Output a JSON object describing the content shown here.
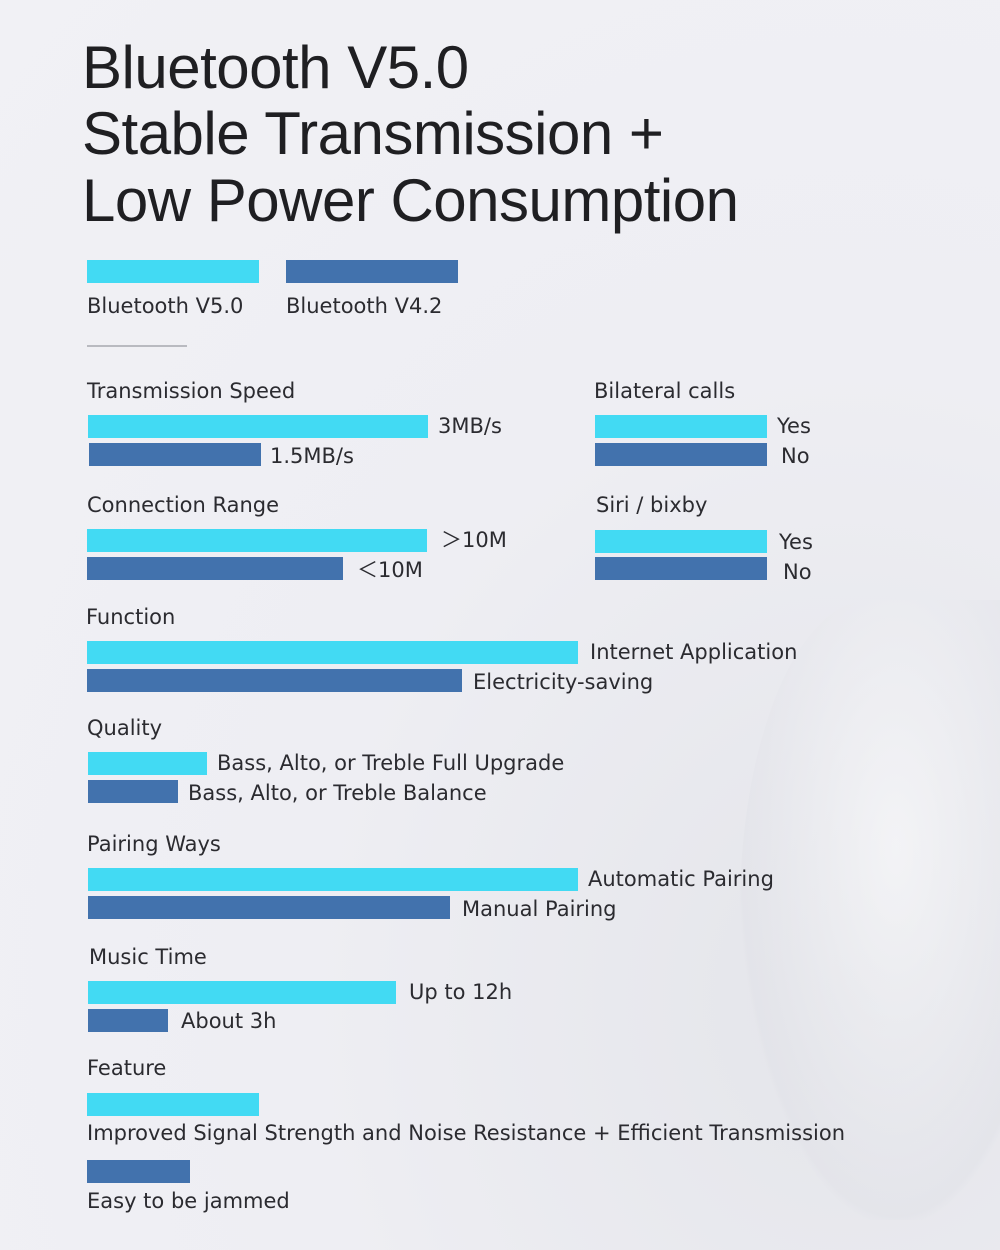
{
  "title_lines": [
    "Bluetooth V5.0",
    "Stable Transmission +",
    "Low Power Consumption"
  ],
  "colors": {
    "v50": "#42daf3",
    "v42": "#4272ad",
    "background": "#eeeef3"
  },
  "legend": [
    {
      "label": "Bluetooth V5.0",
      "color": "#42daf3"
    },
    {
      "label": "Bluetooth V4.2",
      "color": "#4272ad"
    }
  ],
  "sections": [
    {
      "title": "Transmission Speed",
      "v50": "3MB/s",
      "v42": "1.5MB/s"
    },
    {
      "title": "Bilateral calls",
      "v50": "Yes",
      "v42": "No"
    },
    {
      "title": "Connection Range",
      "v50": "＞10M",
      "v42": "＜10M"
    },
    {
      "title": "Siri / bixby",
      "v50": "Yes",
      "v42": "No"
    },
    {
      "title": "Function",
      "v50": "Internet Application",
      "v42": "Electricity-saving"
    },
    {
      "title": "Quality",
      "v50": "Bass, Alto, or Treble Full Upgrade",
      "v42": "Bass, Alto, or Treble Balance"
    },
    {
      "title": "Pairing Ways",
      "v50": "Automatic Pairing",
      "v42": "Manual Pairing"
    },
    {
      "title": "Music Time",
      "v50": "Up to 12h",
      "v42": "About 3h"
    },
    {
      "title": "Feature",
      "v50": "Improved Signal Strength and Noise Resistance + Efficient Transmission",
      "v42": "Easy to be jammed"
    }
  ]
}
